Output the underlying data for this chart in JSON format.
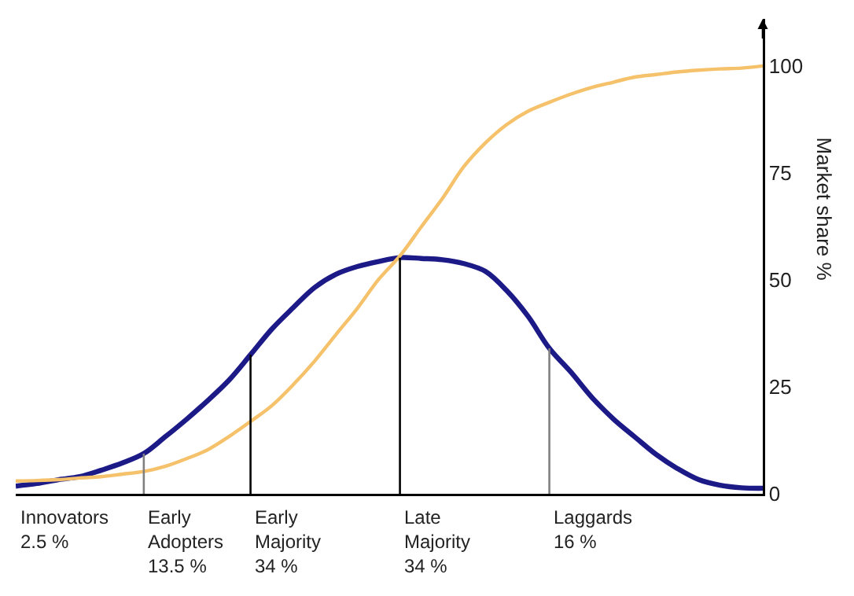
{
  "chart_data": {
    "type": "line",
    "categories": [
      null,
      null,
      null,
      null,
      null,
      null,
      null,
      null,
      null,
      null,
      null,
      null,
      null,
      null,
      null,
      null,
      null,
      null,
      null,
      null,
      null,
      null,
      null,
      null,
      null,
      null,
      null,
      null,
      null,
      null,
      null,
      null,
      null,
      null,
      null,
      null
    ],
    "series": [
      {
        "color": "#1c1a87",
        "values": [
          1.8,
          2.4,
          3.3,
          4,
          5.5,
          7.2,
          9.4,
          13.3,
          17.4,
          21.8,
          26.6,
          32.5,
          38.5,
          43.5,
          48.2,
          51.3,
          53.1,
          54.3,
          55.2,
          55,
          54.7,
          53.8,
          52,
          47.5,
          41.5,
          34,
          28.5,
          22.5,
          17.5,
          13.3,
          9.2,
          5.9,
          3.3,
          2,
          1.4,
          1.3
        ]
      },
      {
        "color": "#f5c26b",
        "values": [
          3,
          3.1,
          3.3,
          3.7,
          4,
          4.6,
          5.2,
          6.4,
          8.2,
          10.3,
          13.4,
          16.9,
          20.6,
          25.5,
          31,
          37.2,
          43.3,
          50.1,
          55.6,
          62.4,
          69.1,
          76.5,
          82,
          86.3,
          89.4,
          91.5,
          93.4,
          95,
          96.2,
          97.4,
          98,
          98.6,
          99,
          99.3,
          99.5,
          100
        ]
      }
    ],
    "ylim": [
      0,
      111
    ],
    "yticks": [
      0,
      25,
      50,
      75,
      100
    ],
    "ylabel": "Market share %",
    "tick_labels": "y",
    "grid": false,
    "annotations": [
      "Innovators\n2.5 %",
      "Early\nAdopters\n13.5 %",
      "Early\nMajority\n34 %",
      "Late\nMajority\n34 %",
      "Laggards\n16 %"
    ]
  }
}
